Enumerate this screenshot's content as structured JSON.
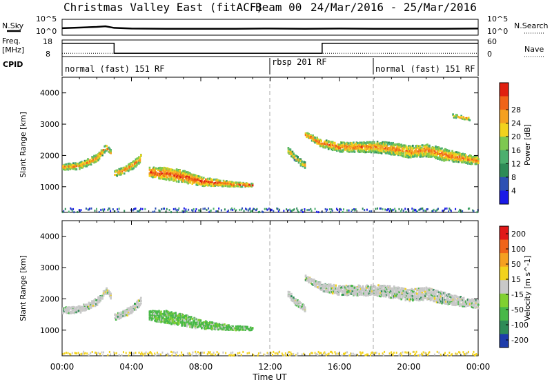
{
  "header": {
    "title": "Christmas Valley East (fitACF)",
    "beam": "Beam 00",
    "date_range": "24/Mar/2016 - 25/Mar/2016"
  },
  "noise_panel": {
    "left_label": "N.Sky",
    "right_label": "N.Search",
    "yticks_left": [
      "10^5",
      "10^0"
    ],
    "yticks_right": [
      "10^5",
      "10^0"
    ],
    "series": [
      {
        "name": "N.Sky",
        "x": [
          0,
          1,
          2,
          2.5,
          3,
          4,
          6,
          8,
          10,
          12,
          14,
          16,
          18,
          20,
          22,
          24
        ],
        "y": [
          2.2,
          2.4,
          2.6,
          2.8,
          2.3,
          2.1,
          2.0,
          2.0,
          2.0,
          2.1,
          2.0,
          2.1,
          2.0,
          2.0,
          2.0,
          2.1
        ]
      }
    ]
  },
  "freq_panel": {
    "left_label_1": "Freq.",
    "left_label_2": "[MHz]",
    "right_label": "Nave",
    "yticks_left": [
      "18",
      "8"
    ],
    "yticks_right": [
      "60",
      "0"
    ],
    "freq_series": {
      "x": [
        0,
        3,
        3,
        15,
        15,
        24
      ],
      "y": [
        16,
        16,
        10,
        10,
        16,
        16
      ]
    },
    "nave_series": {
      "x": [
        0,
        24
      ],
      "y": [
        12,
        12
      ]
    }
  },
  "cpid": {
    "label": "CPID",
    "segments": [
      {
        "label": "normal (fast) 151 RF",
        "start": 0,
        "end": 12
      },
      {
        "label": "rbsp 201 RF",
        "start": 12,
        "end": 18
      },
      {
        "label": "normal (fast) 151 RF",
        "start": 18,
        "end": 24
      }
    ]
  },
  "chart_data": [
    {
      "type": "heatmap",
      "ylabel": "Slant Range [km]",
      "xlim": [
        0,
        24
      ],
      "ylim": [
        180,
        4500
      ],
      "yticks": [
        1000,
        2000,
        3000,
        4000
      ],
      "colorbar": {
        "label": "Power [dB]",
        "ticks": [
          "4",
          "8",
          "12",
          "16",
          "20",
          "24",
          "28"
        ],
        "colors": [
          "#1a1ae6",
          "#2d50b4",
          "#2e8b57",
          "#4caf6e",
          "#7ec850",
          "#f2d21c",
          "#f5a020",
          "#f06418",
          "#e02010"
        ]
      },
      "echo_bands": [
        {
          "x": [
            0,
            1,
            2,
            2.5,
            2.8
          ],
          "range": [
            1650,
            1700,
            1950,
            2300,
            2100
          ],
          "width": [
            200,
            220,
            240,
            200,
            160
          ],
          "level": 0.55
        },
        {
          "x": [
            3,
            3.5,
            4,
            4.5
          ],
          "range": [
            1450,
            1550,
            1700,
            1950
          ],
          "width": [
            180,
            220,
            240,
            240
          ],
          "level": 0.6
        },
        {
          "x": [
            5,
            6,
            7,
            8,
            9,
            10,
            11
          ],
          "range": [
            1500,
            1450,
            1350,
            1200,
            1150,
            1100,
            1080
          ],
          "width": [
            300,
            400,
            380,
            280,
            200,
            140,
            100
          ],
          "level": 0.75
        },
        {
          "x": [
            14,
            15,
            16,
            17,
            18,
            19,
            20,
            21,
            22,
            23,
            24
          ],
          "range": [
            2700,
            2400,
            2300,
            2300,
            2300,
            2250,
            2150,
            2200,
            2050,
            1950,
            1850
          ],
          "width": [
            150,
            250,
            300,
            320,
            350,
            380,
            380,
            400,
            380,
            300,
            250
          ],
          "level": 0.6
        },
        {
          "x": [
            13,
            13.5,
            14
          ],
          "range": [
            2200,
            1900,
            1700
          ],
          "width": [
            200,
            200,
            200
          ],
          "level": 0.45
        },
        {
          "x": [
            22.5,
            23,
            23.5
          ],
          "range": [
            3300,
            3250,
            3200
          ],
          "width": [
            100,
            100,
            100
          ],
          "level": 0.5
        }
      ]
    },
    {
      "type": "heatmap",
      "ylabel": "Slant Range [km]",
      "xlabel": "Time UT",
      "xlim": [
        0,
        24
      ],
      "ylim": [
        180,
        4500
      ],
      "xticks": [
        "00:00",
        "04:00",
        "08:00",
        "12:00",
        "16:00",
        "20:00",
        "00:00"
      ],
      "yticks": [
        1000,
        2000,
        3000,
        4000
      ],
      "colorbar": {
        "label": "Velocity [m s^-1]",
        "ticks": [
          "200",
          "100",
          "50",
          "15",
          "-15",
          "-50",
          "-100",
          "-200"
        ],
        "colors": [
          "#1e3caa",
          "#2e8b57",
          "#48b848",
          "#80d030",
          "#c8c8c8",
          "#f2d21c",
          "#f5a020",
          "#f06418",
          "#e01818"
        ]
      },
      "echo_bands": [
        {
          "x": [
            0,
            1,
            2,
            2.5,
            2.8
          ],
          "range": [
            1650,
            1700,
            1950,
            2300,
            2100
          ],
          "width": [
            200,
            220,
            240,
            200,
            160
          ],
          "level": 0.5
        },
        {
          "x": [
            3,
            3.5,
            4,
            4.5
          ],
          "range": [
            1450,
            1550,
            1700,
            1950
          ],
          "width": [
            180,
            220,
            240,
            240
          ],
          "level": 0.5
        },
        {
          "x": [
            5,
            6,
            7,
            8,
            9,
            10,
            11
          ],
          "range": [
            1500,
            1450,
            1350,
            1200,
            1150,
            1100,
            1080
          ],
          "width": [
            300,
            400,
            380,
            280,
            200,
            140,
            100
          ],
          "level": 0.3
        },
        {
          "x": [
            14,
            15,
            16,
            17,
            18,
            19,
            20,
            21,
            22,
            23,
            24
          ],
          "range": [
            2700,
            2400,
            2300,
            2300,
            2300,
            2250,
            2150,
            2200,
            2050,
            1950,
            1850
          ],
          "width": [
            150,
            250,
            300,
            320,
            350,
            380,
            380,
            400,
            380,
            300,
            250
          ],
          "level": 0.5
        },
        {
          "x": [
            13,
            13.5,
            14
          ],
          "range": [
            2200,
            1900,
            1700
          ],
          "width": [
            200,
            200,
            200
          ],
          "level": 0.4
        }
      ]
    }
  ]
}
